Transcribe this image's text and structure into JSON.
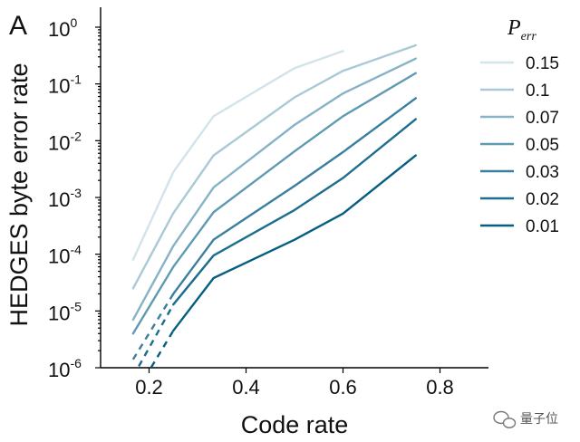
{
  "panel_letter": "A",
  "watermark": "量子位",
  "chart_data": {
    "type": "line",
    "xlabel": "Code rate",
    "ylabel": "HEDGES byte error rate",
    "xlim": [
      0.1,
      0.9
    ],
    "ylim_log10": [
      -6,
      0
    ],
    "yscale": "log",
    "x_ticks": [
      0.2,
      0.4,
      0.6,
      0.8
    ],
    "x_tick_labels": [
      "0.2",
      "0.4",
      "0.6",
      "0.8"
    ],
    "y_tick_exponents": [
      -6,
      -5,
      -4,
      -3,
      -2,
      -1,
      0
    ],
    "y_tick_labels": [
      "10",
      "10",
      "10",
      "10",
      "10",
      "10",
      "10"
    ],
    "y_tick_superscripts": [
      "-6",
      "-5",
      "-4",
      "-3",
      "-2",
      "-1",
      "0"
    ],
    "grid": false,
    "legend_placement": "right",
    "legend_title": "P",
    "legend_title_sub": "err",
    "series": [
      {
        "name": "0.15",
        "color": "#d2e3ea",
        "x": [
          0.167,
          0.25,
          0.333,
          0.5,
          0.6
        ],
        "y": [
          8e-05,
          0.0028,
          0.027,
          0.19,
          0.38
        ]
      },
      {
        "name": "0.1",
        "color": "#a9c9d7",
        "x": [
          0.167,
          0.25,
          0.333,
          0.5,
          0.6,
          0.75
        ],
        "y": [
          2.5e-05,
          0.00053,
          0.0055,
          0.058,
          0.17,
          0.48
        ]
      },
      {
        "name": "0.07",
        "color": "#86b3c6",
        "x": [
          0.167,
          0.25,
          0.333,
          0.5,
          0.6,
          0.75
        ],
        "y": [
          7e-06,
          0.00014,
          0.0015,
          0.019,
          0.068,
          0.28
        ]
      },
      {
        "name": "0.05",
        "color": "#5f9ab3",
        "x": [
          0.167,
          0.25,
          0.333,
          0.5,
          0.6,
          0.75
        ],
        "y": [
          4e-06,
          6e-05,
          0.00055,
          0.0065,
          0.027,
          0.155
        ]
      },
      {
        "name": "0.03",
        "color": "#3a7f9e",
        "x": [
          0.167,
          0.25,
          0.333,
          0.5,
          0.6,
          0.75
        ],
        "y": [
          1.4e-06,
          2e-05,
          0.00018,
          0.0016,
          0.0063,
          0.056
        ]
      },
      {
        "name": "0.02",
        "color": "#1c6d8e",
        "x": [
          0.167,
          0.25,
          0.333,
          0.5,
          0.6,
          0.75
        ],
        "y": [
          7e-07,
          1.3e-05,
          9.5e-05,
          0.0006,
          0.0022,
          0.024
        ]
      },
      {
        "name": "0.01",
        "color": "#075f80",
        "x": [
          0.167,
          0.25,
          0.333,
          0.5,
          0.6,
          0.75
        ],
        "y": [
          3e-07,
          4.5e-06,
          3.8e-05,
          0.00018,
          0.00052,
          0.0055
        ]
      }
    ]
  }
}
